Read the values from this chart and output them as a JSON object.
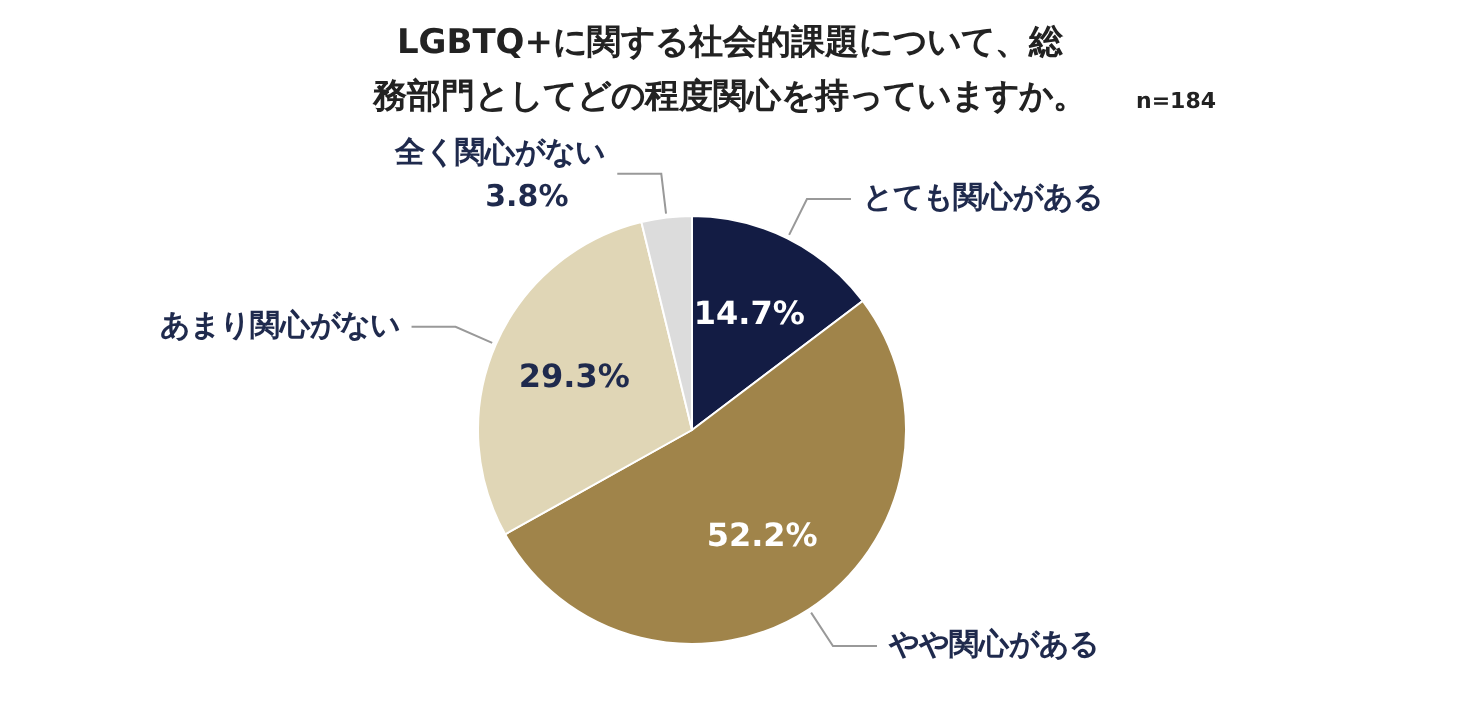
{
  "chart_data": {
    "type": "pie",
    "title": "LGBTQ+に関する社会的課題について、総務部門としてどの程度関心を持っていますか。",
    "annotations": [
      "n=184"
    ],
    "categories": [
      "とても関心がある",
      "やや関心がある",
      "あまり関心がない",
      "全く関心がない"
    ],
    "values": [
      14.7,
      52.2,
      29.3,
      3.8
    ],
    "colors": [
      "#131c44",
      "#a0844a",
      "#e0d6b6",
      "#dcdcdc"
    ],
    "value_labels": [
      "14.7%",
      "52.2%",
      "29.3%",
      "3.8%"
    ]
  }
}
